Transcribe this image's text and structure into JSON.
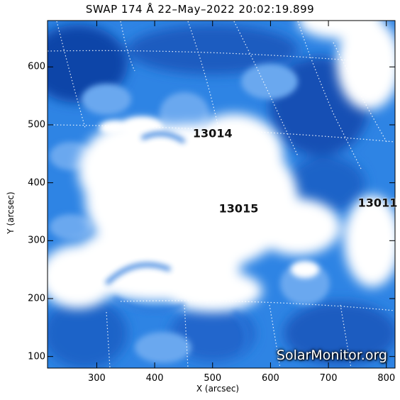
{
  "title": "SWAP 174 Å 22–May–2022 20:02:19.899",
  "x_axis": {
    "label": "X (arcsec)",
    "range": [
      215,
      815
    ],
    "ticks": [
      300,
      400,
      500,
      600,
      700,
      800
    ]
  },
  "y_axis": {
    "label": "Y (arcsec)",
    "range": [
      80,
      680
    ],
    "ticks": [
      100,
      200,
      300,
      400,
      500,
      600
    ]
  },
  "active_regions": [
    {
      "label": "13014",
      "x": 500,
      "y": 485
    },
    {
      "label": "13015",
      "x": 545,
      "y": 355
    },
    {
      "label": "13011",
      "x": 785,
      "y": 365
    }
  ],
  "watermark": "SolarMonitor.org",
  "colors": {
    "image_dark": "#0b3f9c",
    "image_mid": "#2e84e4",
    "image_bright": "#ffffff",
    "grid": "#ffffff"
  }
}
